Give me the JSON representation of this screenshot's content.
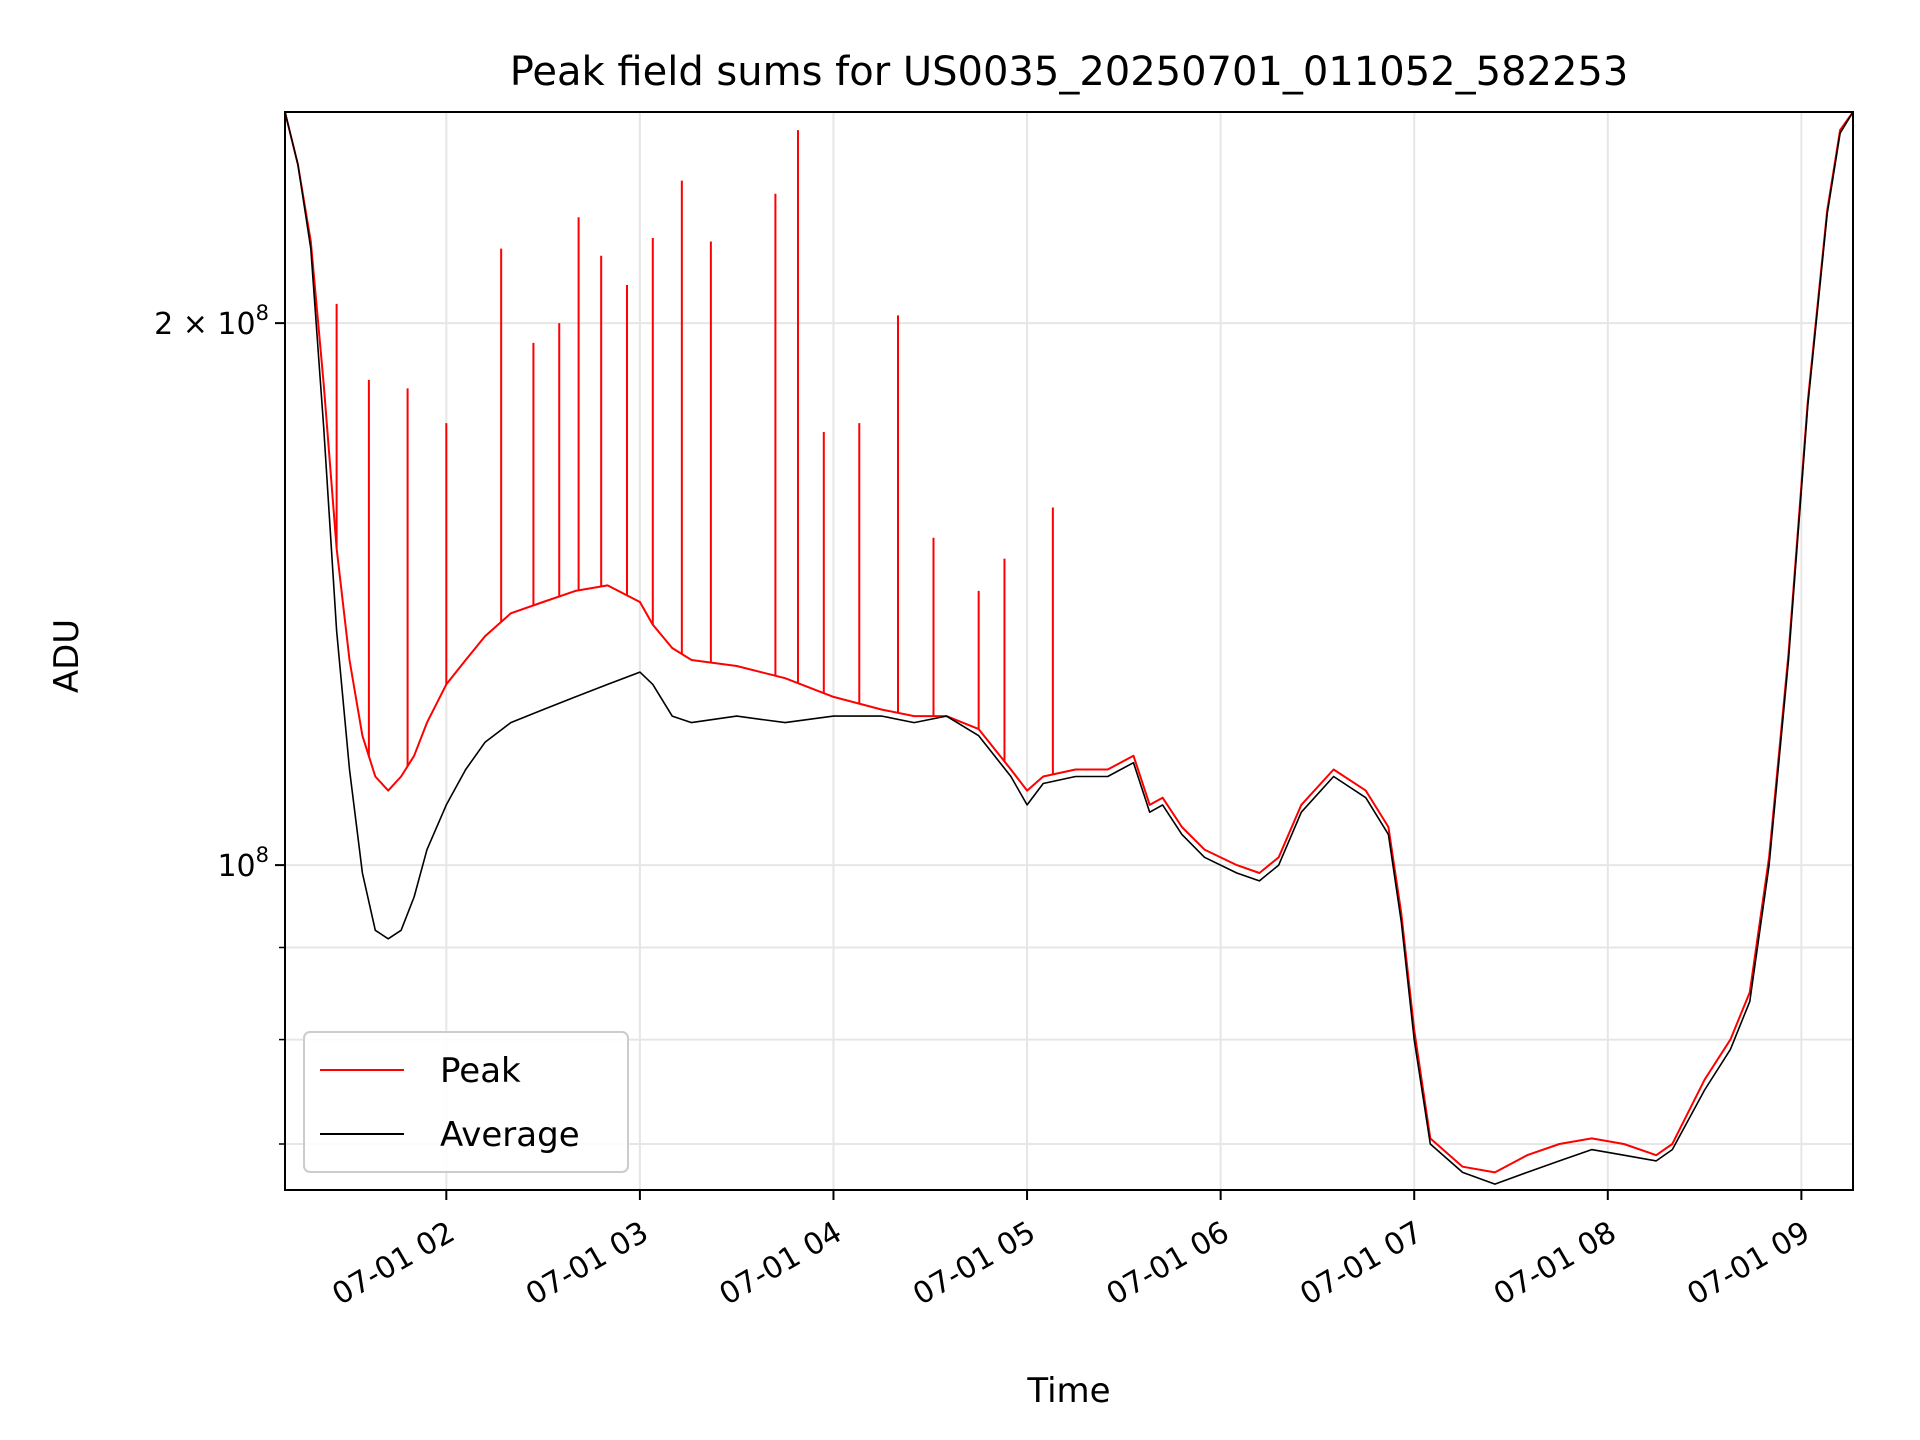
{
  "chart_data": {
    "type": "line",
    "title": "Peak field sums for US0035_20250701_011052_582253",
    "xlabel": "Time",
    "ylabel": "ADU",
    "y_scale": "log",
    "xlim": [
      "2025-07-01T01:10",
      "2025-07-01T09:16"
    ],
    "ylim": [
      66000000,
      262000000
    ],
    "x_ticks": [
      "07-01 02",
      "07-01 03",
      "07-01 04",
      "07-01 05",
      "07-01 06",
      "07-01 07",
      "07-01 08",
      "07-01 09"
    ],
    "x_tick_times": [
      "2025-07-01T02:00",
      "2025-07-01T03:00",
      "2025-07-01T04:00",
      "2025-07-01T05:00",
      "2025-07-01T06:00",
      "2025-07-01T07:00",
      "2025-07-01T08:00",
      "2025-07-01T09:00"
    ],
    "y_ticks": [
      {
        "value": 200000000,
        "label": "2 × 10",
        "exp": "8"
      },
      {
        "value": 100000000,
        "label": "10",
        "exp": "8"
      }
    ],
    "y_minor_ticks": [
      90000000,
      80000000,
      70000000
    ],
    "grid": true,
    "legend_position": "lower-left",
    "series": [
      {
        "name": "Average",
        "color": "#000000",
        "x": [
          "2025-07-01T01:10",
          "2025-07-01T01:14",
          "2025-07-01T01:18",
          "2025-07-01T01:22",
          "2025-07-01T01:26",
          "2025-07-01T01:30",
          "2025-07-01T01:34",
          "2025-07-01T01:38",
          "2025-07-01T01:42",
          "2025-07-01T01:46",
          "2025-07-01T01:50",
          "2025-07-01T01:54",
          "2025-07-01T02:00",
          "2025-07-01T02:06",
          "2025-07-01T02:12",
          "2025-07-01T02:20",
          "2025-07-01T02:30",
          "2025-07-01T02:40",
          "2025-07-01T02:50",
          "2025-07-01T03:00",
          "2025-07-01T03:04",
          "2025-07-01T03:10",
          "2025-07-01T03:16",
          "2025-07-01T03:30",
          "2025-07-01T03:45",
          "2025-07-01T04:00",
          "2025-07-01T04:15",
          "2025-07-01T04:25",
          "2025-07-01T04:35",
          "2025-07-01T04:45",
          "2025-07-01T04:55",
          "2025-07-01T05:00",
          "2025-07-01T05:05",
          "2025-07-01T05:15",
          "2025-07-01T05:25",
          "2025-07-01T05:33",
          "2025-07-01T05:38",
          "2025-07-01T05:42",
          "2025-07-01T05:48",
          "2025-07-01T05:55",
          "2025-07-01T06:05",
          "2025-07-01T06:12",
          "2025-07-01T06:18",
          "2025-07-01T06:25",
          "2025-07-01T06:35",
          "2025-07-01T06:45",
          "2025-07-01T06:52",
          "2025-07-01T06:56",
          "2025-07-01T07:00",
          "2025-07-01T07:05",
          "2025-07-01T07:15",
          "2025-07-01T07:25",
          "2025-07-01T07:35",
          "2025-07-01T07:45",
          "2025-07-01T07:55",
          "2025-07-01T08:05",
          "2025-07-01T08:15",
          "2025-07-01T08:20",
          "2025-07-01T08:30",
          "2025-07-01T08:38",
          "2025-07-01T08:44",
          "2025-07-01T08:50",
          "2025-07-01T08:56",
          "2025-07-01T09:02",
          "2025-07-01T09:08",
          "2025-07-01T09:12",
          "2025-07-01T09:16"
        ],
        "y": [
          262000000,
          245000000,
          220000000,
          175000000,
          135000000,
          113000000,
          99000000,
          92000000,
          91000000,
          92000000,
          96000000,
          102000000,
          108000000,
          113000000,
          117000000,
          120000000,
          122000000,
          124000000,
          126000000,
          128000000,
          126000000,
          121000000,
          120000000,
          121000000,
          120000000,
          121000000,
          121000000,
          120000000,
          121000000,
          118000000,
          112000000,
          108000000,
          111000000,
          112000000,
          112000000,
          114000000,
          107000000,
          108000000,
          104000000,
          101000000,
          99000000,
          98000000,
          100000000,
          107000000,
          112000000,
          109000000,
          104000000,
          93000000,
          80000000,
          70000000,
          67500000,
          66500000,
          67500000,
          68500000,
          69500000,
          69000000,
          68500000,
          69500000,
          75000000,
          79000000,
          84000000,
          100000000,
          130000000,
          180000000,
          230000000,
          255000000,
          262000000
        ]
      },
      {
        "name": "Peak",
        "color": "#ff0000",
        "x": [
          "2025-07-01T01:10",
          "2025-07-01T01:14",
          "2025-07-01T01:18",
          "2025-07-01T01:22",
          "2025-07-01T01:26",
          "2025-07-01T01:30",
          "2025-07-01T01:34",
          "2025-07-01T01:38",
          "2025-07-01T01:42",
          "2025-07-01T01:46",
          "2025-07-01T01:50",
          "2025-07-01T01:54",
          "2025-07-01T02:00",
          "2025-07-01T02:06",
          "2025-07-01T02:12",
          "2025-07-01T02:20",
          "2025-07-01T02:30",
          "2025-07-01T02:40",
          "2025-07-01T02:50",
          "2025-07-01T03:00",
          "2025-07-01T03:04",
          "2025-07-01T03:10",
          "2025-07-01T03:16",
          "2025-07-01T03:30",
          "2025-07-01T03:45",
          "2025-07-01T04:00",
          "2025-07-01T04:15",
          "2025-07-01T04:25",
          "2025-07-01T04:35",
          "2025-07-01T04:45",
          "2025-07-01T04:55",
          "2025-07-01T05:00",
          "2025-07-01T05:05",
          "2025-07-01T05:15",
          "2025-07-01T05:25",
          "2025-07-01T05:33",
          "2025-07-01T05:38",
          "2025-07-01T05:42",
          "2025-07-01T05:48",
          "2025-07-01T05:55",
          "2025-07-01T06:05",
          "2025-07-01T06:12",
          "2025-07-01T06:18",
          "2025-07-01T06:25",
          "2025-07-01T06:35",
          "2025-07-01T06:45",
          "2025-07-01T06:52",
          "2025-07-01T06:56",
          "2025-07-01T07:00",
          "2025-07-01T07:05",
          "2025-07-01T07:15",
          "2025-07-01T07:25",
          "2025-07-01T07:35",
          "2025-07-01T07:45",
          "2025-07-01T07:55",
          "2025-07-01T08:05",
          "2025-07-01T08:15",
          "2025-07-01T08:20",
          "2025-07-01T08:30",
          "2025-07-01T08:38",
          "2025-07-01T08:44",
          "2025-07-01T08:50",
          "2025-07-01T08:56",
          "2025-07-01T09:02",
          "2025-07-01T09:08",
          "2025-07-01T09:12",
          "2025-07-01T09:16"
        ],
        "y": [
          262000000,
          245000000,
          222000000,
          185000000,
          150000000,
          130000000,
          118000000,
          112000000,
          110000000,
          112000000,
          115000000,
          120000000,
          126000000,
          130000000,
          134000000,
          138000000,
          140000000,
          142000000,
          143000000,
          140000000,
          136000000,
          132000000,
          130000000,
          129000000,
          127000000,
          124000000,
          122000000,
          121000000,
          121000000,
          119000000,
          113000000,
          110000000,
          112000000,
          113000000,
          113000000,
          115000000,
          108000000,
          109000000,
          105000000,
          102000000,
          100000000,
          99000000,
          101000000,
          108000000,
          113000000,
          110000000,
          105000000,
          94000000,
          81000000,
          70500000,
          68000000,
          67500000,
          69000000,
          70000000,
          70500000,
          70000000,
          69000000,
          70000000,
          76000000,
          80000000,
          85000000,
          101000000,
          131000000,
          181000000,
          231000000,
          256000000,
          262000000
        ],
        "spikes": [
          {
            "x": "2025-07-01T01:26",
            "y": 205000000
          },
          {
            "x": "2025-07-01T01:36",
            "y": 186000000
          },
          {
            "x": "2025-07-01T01:48",
            "y": 184000000
          },
          {
            "x": "2025-07-01T02:00",
            "y": 176000000
          },
          {
            "x": "2025-07-01T02:17",
            "y": 220000000
          },
          {
            "x": "2025-07-01T02:27",
            "y": 195000000
          },
          {
            "x": "2025-07-01T02:35",
            "y": 200000000
          },
          {
            "x": "2025-07-01T02:41",
            "y": 229000000
          },
          {
            "x": "2025-07-01T02:48",
            "y": 218000000
          },
          {
            "x": "2025-07-01T02:56",
            "y": 210000000
          },
          {
            "x": "2025-07-01T03:04",
            "y": 223000000
          },
          {
            "x": "2025-07-01T03:13",
            "y": 240000000
          },
          {
            "x": "2025-07-01T03:22",
            "y": 222000000
          },
          {
            "x": "2025-07-01T03:42",
            "y": 236000000
          },
          {
            "x": "2025-07-01T03:49",
            "y": 256000000
          },
          {
            "x": "2025-07-01T03:57",
            "y": 174000000
          },
          {
            "x": "2025-07-01T04:08",
            "y": 176000000
          },
          {
            "x": "2025-07-01T04:20",
            "y": 202000000
          },
          {
            "x": "2025-07-01T04:31",
            "y": 152000000
          },
          {
            "x": "2025-07-01T04:45",
            "y": 142000000
          },
          {
            "x": "2025-07-01T04:53",
            "y": 148000000
          },
          {
            "x": "2025-07-01T05:08",
            "y": 158000000
          }
        ]
      }
    ]
  }
}
